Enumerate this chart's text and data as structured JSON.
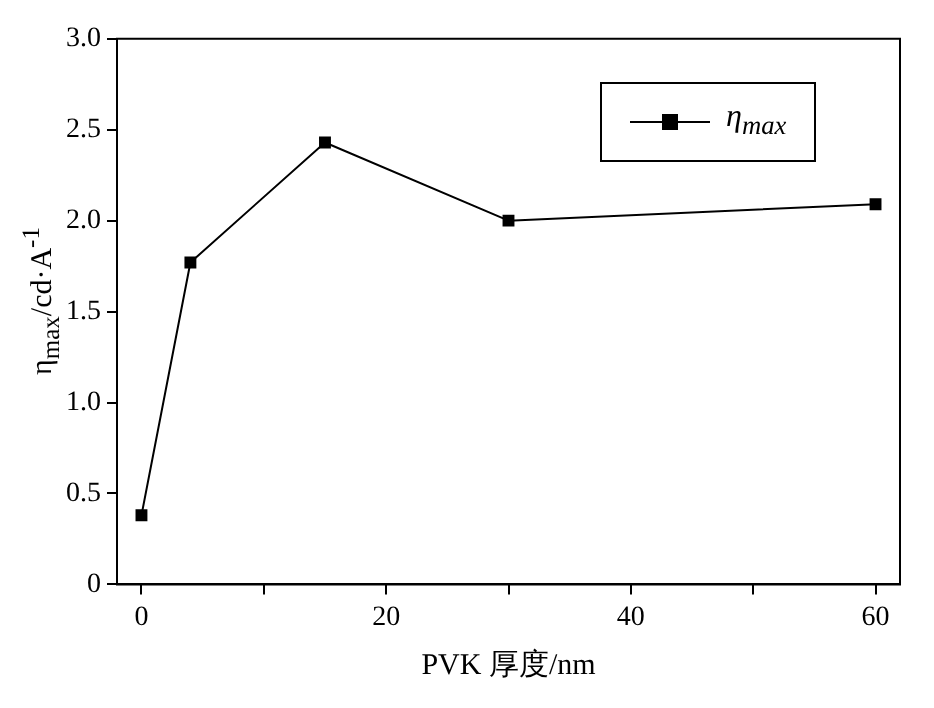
{
  "chart_data": {
    "type": "line",
    "xlabel": "PVK 厚度/nm",
    "ylabel": "η$_{max}$/cd·A$^{-1}$",
    "x": [
      0,
      4,
      15,
      30,
      60
    ],
    "series": [
      {
        "name": "η$_{max}$",
        "color": "#000000",
        "values": [
          0.38,
          1.77,
          2.43,
          2.0,
          2.09
        ]
      }
    ],
    "xlim": [
      -2,
      62
    ],
    "xticks": [
      0,
      {
        "value": 10,
        "label": null
      },
      20,
      {
        "value": 30,
        "label": null
      },
      40,
      {
        "value": 50,
        "label": null
      },
      60
    ],
    "ylim": [
      0,
      3.0
    ],
    "yticks": [
      0,
      0.5,
      {
        "value": 1.0,
        "label": "1.0"
      },
      1.5,
      {
        "value": 2.0,
        "label": "2.0"
      },
      2.5,
      {
        "value": 3.0,
        "label": "3.0"
      }
    ],
    "grid": false,
    "legend": "top right",
    "marker": "square",
    "line_style": "solid"
  }
}
